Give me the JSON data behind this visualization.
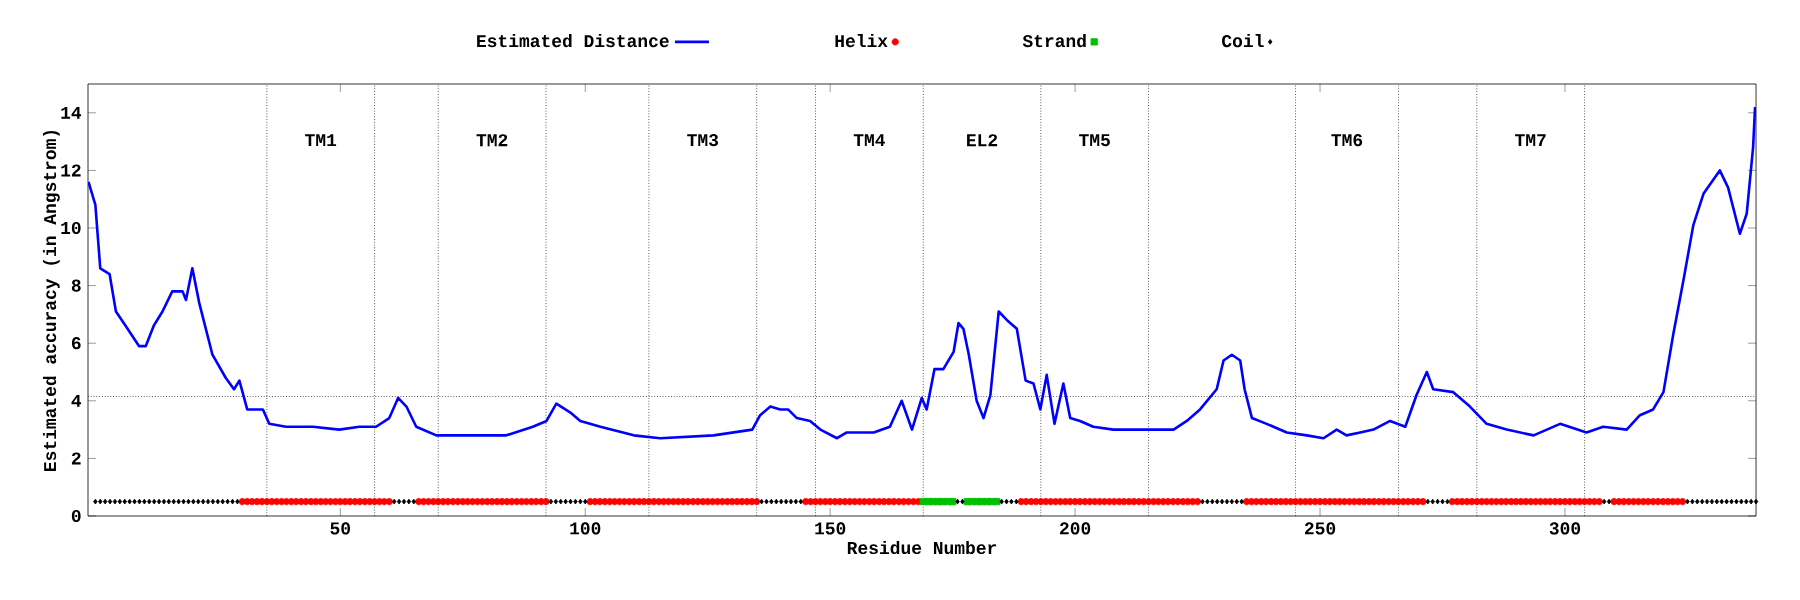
{
  "chart_data": {
    "type": "line",
    "xlabel": "Residue Number",
    "ylabel": "Estimated accuracy (in Angstrom)",
    "xlim": [
      -1.5,
      339
    ],
    "ylim": [
      0,
      15
    ],
    "xticks": [
      50,
      100,
      150,
      200,
      250,
      300
    ],
    "yticks": [
      0,
      2,
      4,
      6,
      8,
      10,
      12,
      14
    ],
    "legend": "top",
    "series": [
      {
        "name": "Estimated Distance",
        "color": "#0000ff",
        "marker": "none",
        "x": [
          -1.4,
          0,
          1,
          2.9,
          4.2,
          6.2,
          8.9,
          10.3,
          11.9,
          13.7,
          15.7,
          17.8,
          18.5,
          19.8,
          21.2,
          23.9,
          26.6,
          28.3,
          29.4,
          31,
          34.2,
          35.5,
          38.9,
          44.4,
          49.8,
          53.9,
          57.3,
          60,
          61.8,
          63.5,
          65.5,
          69.6,
          75.7,
          83.9,
          89.3,
          92.1,
          94.1,
          96.9,
          99,
          103.1,
          109.9,
          115.3,
          126.2,
          134.1,
          135.7,
          137.8,
          139.8,
          141.4,
          143.2,
          145.9,
          148,
          151.4,
          153.4,
          158.9,
          162.2,
          164.6,
          166.7,
          168.7,
          169.7,
          171.3,
          173.1,
          175.2,
          176.2,
          177.2,
          178.3,
          179.9,
          181.3,
          182.7,
          184.4,
          186.1,
          188.1,
          189.9,
          191.5,
          192.9,
          194.2,
          195.8,
          197.6,
          199,
          201,
          203.7,
          207.8,
          216,
          220.1,
          222.8,
          225.5,
          228.9,
          230.3,
          232,
          233.7,
          234.6,
          236.1,
          239.1,
          243.2,
          247.3,
          250.7,
          253.4,
          255.4,
          258.2,
          260.9,
          264.3,
          267.4,
          269.7,
          271.8,
          273.1,
          277.2,
          280.6,
          284,
          288.1,
          293.6,
          299,
          304.4,
          307.8,
          312.6,
          315.3,
          318,
          320.1,
          322.1,
          324.2,
          326.2,
          328.3,
          331.6,
          333.3,
          335.7,
          337.1,
          338.4,
          338.8
        ],
        "values": [
          11.6,
          10.8,
          8.6,
          8.4,
          7.1,
          6.6,
          5.9,
          5.9,
          6.6,
          7.1,
          7.8,
          7.8,
          7.5,
          8.6,
          7.4,
          5.6,
          4.8,
          4.4,
          4.7,
          3.7,
          3.7,
          3.2,
          3.1,
          3.1,
          3.0,
          3.1,
          3.1,
          3.4,
          4.1,
          3.8,
          3.1,
          2.8,
          2.8,
          2.8,
          3.1,
          3.3,
          3.9,
          3.6,
          3.3,
          3.1,
          2.8,
          2.7,
          2.8,
          3.0,
          3.5,
          3.8,
          3.7,
          3.7,
          3.4,
          3.3,
          3.0,
          2.7,
          2.9,
          2.9,
          3.1,
          4.0,
          3.0,
          4.1,
          3.7,
          5.1,
          5.1,
          5.7,
          6.7,
          6.5,
          5.6,
          4.0,
          3.4,
          4.2,
          7.1,
          6.8,
          6.5,
          4.7,
          4.6,
          3.7,
          4.9,
          3.2,
          4.6,
          3.4,
          3.3,
          3.1,
          3.0,
          3.0,
          3.0,
          3.3,
          3.7,
          4.4,
          5.4,
          5.6,
          5.4,
          4.4,
          3.4,
          3.2,
          2.9,
          2.8,
          2.7,
          3.0,
          2.8,
          2.9,
          3.0,
          3.3,
          3.1,
          4.2,
          5.0,
          4.4,
          4.3,
          3.8,
          3.2,
          3.0,
          2.8,
          3.2,
          2.9,
          3.1,
          3.0,
          3.5,
          3.7,
          4.3,
          6.3,
          8.2,
          10.1,
          11.2,
          12.0,
          11.4,
          9.8,
          10.5,
          12.8,
          14.2
        ]
      },
      {
        "name": "Helix",
        "type": "scatter",
        "color": "#ff0000",
        "marker": "circle",
        "x": [
          30,
          31,
          32,
          33,
          34,
          35,
          36,
          37,
          38,
          39,
          40,
          41,
          42,
          43,
          44,
          45,
          46,
          47,
          48,
          49,
          50,
          51,
          52,
          53,
          54,
          55,
          56,
          57,
          58,
          59,
          60,
          66,
          67,
          68,
          69,
          70,
          71,
          72,
          73,
          74,
          75,
          76,
          77,
          78,
          79,
          80,
          81,
          82,
          83,
          84,
          85,
          86,
          87,
          88,
          89,
          90,
          91,
          92,
          101,
          102,
          103,
          104,
          105,
          106,
          107,
          108,
          109,
          110,
          111,
          112,
          113,
          114,
          115,
          116,
          117,
          118,
          119,
          120,
          121,
          122,
          123,
          124,
          125,
          126,
          127,
          128,
          129,
          130,
          131,
          132,
          133,
          134,
          135,
          145,
          146,
          147,
          148,
          149,
          150,
          151,
          152,
          153,
          154,
          155,
          156,
          157,
          158,
          159,
          160,
          161,
          162,
          163,
          164,
          165,
          166,
          167,
          168,
          189,
          190,
          191,
          192,
          193,
          194,
          195,
          196,
          197,
          198,
          199,
          200,
          201,
          202,
          203,
          204,
          205,
          206,
          207,
          208,
          209,
          210,
          211,
          212,
          213,
          214,
          215,
          216,
          217,
          218,
          219,
          220,
          221,
          222,
          223,
          224,
          225,
          235,
          236,
          237,
          238,
          239,
          240,
          241,
          242,
          243,
          244,
          245,
          246,
          247,
          248,
          249,
          250,
          251,
          252,
          253,
          254,
          255,
          256,
          257,
          258,
          259,
          260,
          261,
          262,
          263,
          264,
          265,
          266,
          267,
          268,
          269,
          270,
          271,
          277,
          278,
          279,
          280,
          281,
          282,
          283,
          284,
          285,
          286,
          287,
          288,
          289,
          290,
          291,
          292,
          293,
          294,
          295,
          296,
          297,
          298,
          299,
          300,
          301,
          302,
          303,
          304,
          305,
          306,
          307,
          310,
          311,
          312,
          313,
          314,
          315,
          316,
          317,
          318,
          319,
          320,
          321,
          322,
          323,
          324
        ],
        "values": [
          0.5,
          0.5,
          0.5,
          0.5,
          0.5,
          0.5,
          0.5,
          0.5,
          0.5,
          0.5,
          0.5,
          0.5,
          0.5,
          0.5,
          0.5,
          0.5,
          0.5,
          0.5,
          0.5,
          0.5,
          0.5,
          0.5,
          0.5,
          0.5,
          0.5,
          0.5,
          0.5,
          0.5,
          0.5,
          0.5,
          0.5,
          0.5,
          0.5,
          0.5,
          0.5,
          0.5,
          0.5,
          0.5,
          0.5,
          0.5,
          0.5,
          0.5,
          0.5,
          0.5,
          0.5,
          0.5,
          0.5,
          0.5,
          0.5,
          0.5,
          0.5,
          0.5,
          0.5,
          0.5,
          0.5,
          0.5,
          0.5,
          0.5,
          0.5,
          0.5,
          0.5,
          0.5,
          0.5,
          0.5,
          0.5,
          0.5,
          0.5,
          0.5,
          0.5,
          0.5,
          0.5,
          0.5,
          0.5,
          0.5,
          0.5,
          0.5,
          0.5,
          0.5,
          0.5,
          0.5,
          0.5,
          0.5,
          0.5,
          0.5,
          0.5,
          0.5,
          0.5,
          0.5,
          0.5,
          0.5,
          0.5,
          0.5,
          0.5,
          0.5,
          0.5,
          0.5,
          0.5,
          0.5,
          0.5,
          0.5,
          0.5,
          0.5,
          0.5,
          0.5,
          0.5,
          0.5,
          0.5,
          0.5,
          0.5,
          0.5,
          0.5,
          0.5,
          0.5,
          0.5,
          0.5,
          0.5,
          0.5,
          0.5,
          0.5,
          0.5,
          0.5,
          0.5,
          0.5,
          0.5,
          0.5,
          0.5,
          0.5,
          0.5,
          0.5,
          0.5,
          0.5,
          0.5,
          0.5,
          0.5,
          0.5,
          0.5,
          0.5,
          0.5,
          0.5,
          0.5,
          0.5,
          0.5,
          0.5,
          0.5,
          0.5,
          0.5,
          0.5,
          0.5,
          0.5,
          0.5,
          0.5,
          0.5,
          0.5,
          0.5,
          0.5,
          0.5,
          0.5,
          0.5,
          0.5,
          0.5,
          0.5,
          0.5,
          0.5,
          0.5,
          0.5,
          0.5,
          0.5,
          0.5,
          0.5,
          0.5,
          0.5,
          0.5,
          0.5,
          0.5,
          0.5,
          0.5,
          0.5,
          0.5,
          0.5,
          0.5,
          0.5,
          0.5,
          0.5,
          0.5,
          0.5,
          0.5,
          0.5,
          0.5,
          0.5,
          0.5,
          0.5,
          0.5,
          0.5,
          0.5,
          0.5,
          0.5,
          0.5,
          0.5,
          0.5,
          0.5,
          0.5,
          0.5,
          0.5,
          0.5,
          0.5,
          0.5,
          0.5,
          0.5,
          0.5,
          0.5,
          0.5,
          0.5,
          0.5,
          0.5,
          0.5,
          0.5,
          0.5,
          0.5,
          0.5,
          0.5,
          0.5,
          0.5,
          0.5,
          0.5,
          0.5,
          0.5,
          0.5,
          0.5,
          0.5,
          0.5,
          0.5,
          0.5,
          0.5,
          0.5,
          0.5,
          0.5,
          0.5
        ]
      },
      {
        "name": "Strand",
        "type": "scatter",
        "color": "#00c000",
        "marker": "square",
        "x": [
          169,
          170,
          171,
          172,
          173,
          174,
          175,
          178,
          179,
          180,
          181,
          182,
          183,
          184
        ],
        "values": [
          0.5,
          0.5,
          0.5,
          0.5,
          0.5,
          0.5,
          0.5,
          0.5,
          0.5,
          0.5,
          0.5,
          0.5,
          0.5,
          0.5
        ]
      },
      {
        "name": "Coil",
        "type": "scatter",
        "color": "#000000",
        "marker": "diamond",
        "x": [
          0,
          1,
          2,
          3,
          4,
          5,
          6,
          7,
          8,
          9,
          10,
          11,
          12,
          13,
          14,
          15,
          16,
          17,
          18,
          19,
          20,
          21,
          22,
          23,
          24,
          25,
          26,
          27,
          28,
          29,
          61,
          62,
          63,
          64,
          65,
          93,
          94,
          95,
          96,
          97,
          98,
          99,
          100,
          136,
          137,
          138,
          139,
          140,
          141,
          142,
          143,
          144,
          176,
          177,
          185,
          186,
          187,
          188,
          226,
          227,
          228,
          229,
          230,
          231,
          232,
          233,
          234,
          272,
          273,
          274,
          275,
          276,
          308,
          309,
          325,
          326,
          327,
          328,
          329,
          330,
          331,
          332,
          333,
          334,
          335,
          336,
          337,
          338,
          339
        ],
        "values": [
          0.5,
          0.5,
          0.5,
          0.5,
          0.5,
          0.5,
          0.5,
          0.5,
          0.5,
          0.5,
          0.5,
          0.5,
          0.5,
          0.5,
          0.5,
          0.5,
          0.5,
          0.5,
          0.5,
          0.5,
          0.5,
          0.5,
          0.5,
          0.5,
          0.5,
          0.5,
          0.5,
          0.5,
          0.5,
          0.5,
          0.5,
          0.5,
          0.5,
          0.5,
          0.5,
          0.5,
          0.5,
          0.5,
          0.5,
          0.5,
          0.5,
          0.5,
          0.5,
          0.5,
          0.5,
          0.5,
          0.5,
          0.5,
          0.5,
          0.5,
          0.5,
          0.5,
          0.5,
          0.5,
          0.5,
          0.5,
          0.5,
          0.5,
          0.5,
          0.5,
          0.5,
          0.5,
          0.5,
          0.5,
          0.5,
          0.5,
          0.5,
          0.5,
          0.5,
          0.5,
          0.5,
          0.5,
          0.5,
          0.5,
          0.5,
          0.5,
          0.5,
          0.5,
          0.5,
          0.5,
          0.5,
          0.5,
          0.5,
          0.5,
          0.5,
          0.5,
          0.5,
          0.5,
          0.5
        ]
      }
    ],
    "ref_lines": [
      {
        "axis": "x",
        "value": 35,
        "label": "TM1",
        "line_style": "dotted"
      },
      {
        "axis": "x",
        "value": 57,
        "line_style": "dotted"
      },
      {
        "axis": "x",
        "value": 70,
        "label": "TM2",
        "line_style": "dotted"
      },
      {
        "axis": "x",
        "value": 92,
        "line_style": "dotted"
      },
      {
        "axis": "x",
        "value": 113,
        "label": "TM3",
        "line_style": "dotted"
      },
      {
        "axis": "x",
        "value": 135,
        "line_style": "dotted"
      },
      {
        "axis": "x",
        "value": 147,
        "label": "TM4",
        "line_style": "dotted"
      },
      {
        "axis": "x",
        "value": 169,
        "label": "EL2",
        "line_style": "dotted"
      },
      {
        "axis": "x",
        "value": 193,
        "label": "TM5",
        "line_style": "dotted"
      },
      {
        "axis": "x",
        "value": 215,
        "line_style": "dotted"
      },
      {
        "axis": "x",
        "value": 245,
        "label": "TM6",
        "line_style": "dotted"
      },
      {
        "axis": "x",
        "value": 266,
        "line_style": "dotted"
      },
      {
        "axis": "x",
        "value": 282,
        "label": "TM7",
        "line_style": "dotted"
      },
      {
        "axis": "x",
        "value": 304,
        "line_style": "dotted"
      },
      {
        "axis": "y",
        "value": 4.15,
        "line_style": "dotted"
      }
    ]
  }
}
